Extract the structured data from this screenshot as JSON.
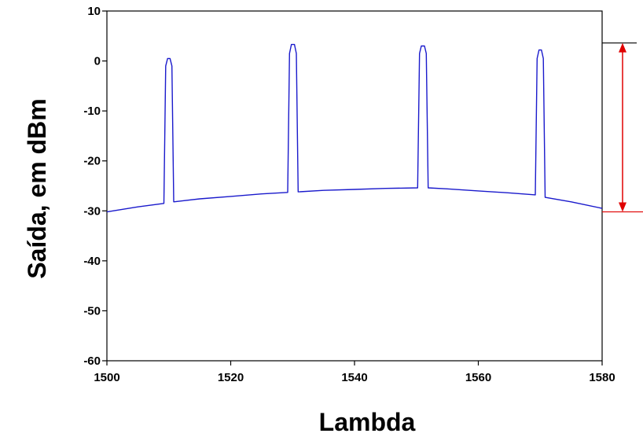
{
  "chart_data": {
    "type": "line",
    "title": "",
    "xlabel": "Lambda",
    "ylabel": "Saída, em dBm",
    "xlim": [
      1500,
      1580
    ],
    "ylim": [
      -60,
      10
    ],
    "x_ticks": [
      "1500",
      "1520",
      "1540",
      "1560",
      "1580"
    ],
    "y_ticks": [
      "10",
      "0",
      "-10",
      "-20",
      "-30",
      "-40",
      "-50",
      "-60"
    ],
    "grid": false,
    "legend": "none",
    "series": [
      {
        "color": "#1a1acc",
        "x": [
          1500,
          1505,
          1509.2,
          1509.5,
          1509.8,
          1510.2,
          1510.5,
          1510.8,
          1515,
          1520,
          1525,
          1529.2,
          1529.5,
          1529.8,
          1530.3,
          1530.6,
          1530.9,
          1535,
          1540,
          1545,
          1550.2,
          1550.5,
          1550.8,
          1551.3,
          1551.6,
          1551.9,
          1555,
          1560,
          1565,
          1569.2,
          1569.5,
          1569.8,
          1570.2,
          1570.5,
          1570.8,
          1575,
          1580
        ],
        "y": [
          -30.2,
          -29.2,
          -28.5,
          -1.0,
          0.5,
          0.5,
          -1.0,
          -28.2,
          -27.6,
          -27.1,
          -26.6,
          -26.3,
          1.5,
          3.3,
          3.3,
          1.5,
          -26.2,
          -25.9,
          -25.7,
          -25.5,
          -25.4,
          1.5,
          3.0,
          3.0,
          1.5,
          -25.4,
          -25.6,
          -26.0,
          -26.4,
          -26.8,
          0.5,
          2.2,
          2.2,
          0.5,
          -27.3,
          -28.2,
          -29.5
        ]
      }
    ],
    "annotation": {
      "type": "double-arrow",
      "y_top": 3.6,
      "y_bottom": -30.2,
      "color": "#e00000"
    }
  }
}
